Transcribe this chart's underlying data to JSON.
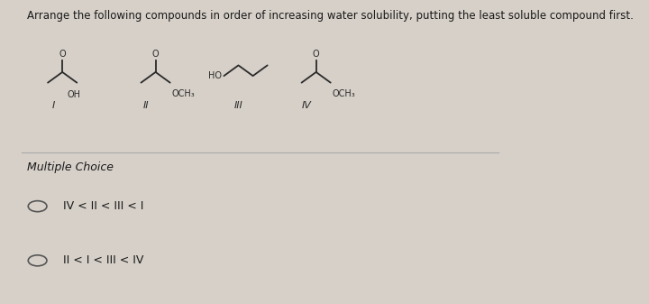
{
  "title": "Arrange the following compounds in order of increasing water solubility, putting the least soluble compound first.",
  "title_fontsize": 8.5,
  "background_color": "#d6d0c8",
  "section_label": "Multiple Choice",
  "section_fontsize": 9,
  "choices": [
    "IV < II < III < I",
    "II < I < III < IV"
  ],
  "choice_fontsize": 9,
  "compound_labels": [
    "I",
    "II",
    "III",
    "IV"
  ],
  "text_color": "#1a1a1a",
  "circle_color": "#555555",
  "line_color": "#2a2a2a"
}
